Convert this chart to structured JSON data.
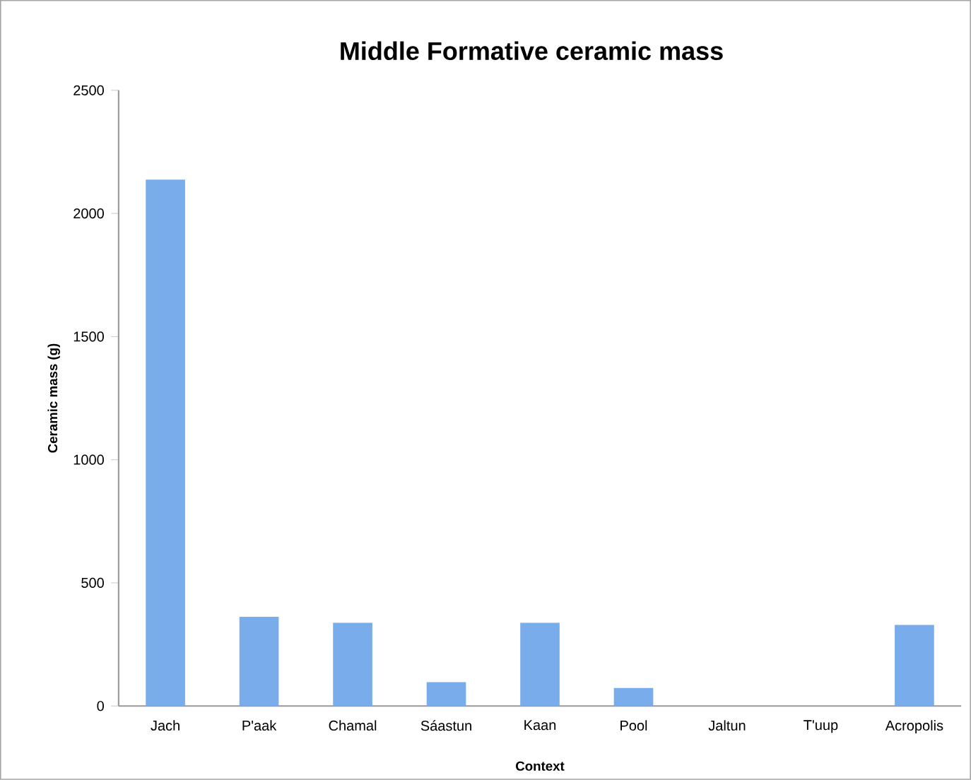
{
  "chart_data": {
    "type": "bar",
    "title": "Middle Formative ceramic mass",
    "xlabel": "Context",
    "ylabel": "Ceramic mass (g)",
    "categories": [
      "Jach",
      "P'aak",
      "Chamal",
      "Sáastun",
      "Kaan",
      "Pool",
      "Jaltun",
      "T'uup",
      "Acropolis"
    ],
    "values": [
      2137,
      362,
      338,
      97,
      338,
      73,
      0,
      0,
      329
    ],
    "color": "#78acea",
    "ylim": [
      0,
      2500
    ],
    "yticks": [
      0,
      500,
      1000,
      1500,
      2000,
      2500
    ],
    "grid": false
  }
}
